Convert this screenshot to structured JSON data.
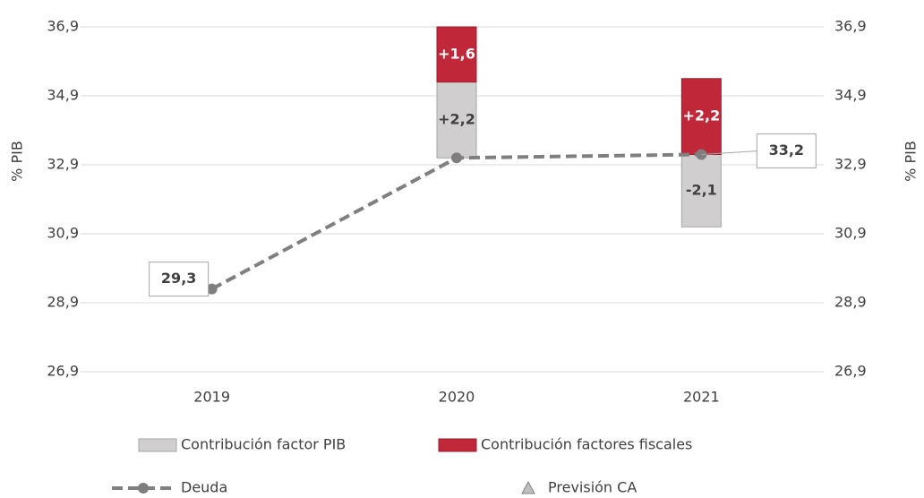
{
  "chart_data": {
    "type": "combo",
    "categories": [
      "2019",
      "2020",
      "2021"
    ],
    "ylabel": "% PIB",
    "y2label": "% PIB",
    "ylim": [
      26.9,
      36.9
    ],
    "yticks": [
      {
        "value": 26.9,
        "label": "26,9"
      },
      {
        "value": 28.9,
        "label": "28,9"
      },
      {
        "value": 30.9,
        "label": "30,9"
      },
      {
        "value": 32.9,
        "label": "32,9"
      },
      {
        "value": 34.9,
        "label": "34,9"
      },
      {
        "value": 36.9,
        "label": "36,9"
      }
    ],
    "y2lim": [
      26.9,
      36.9
    ],
    "y2ticks": [
      {
        "value": 26.9,
        "label": "26,9"
      },
      {
        "value": 28.9,
        "label": "28,9"
      },
      {
        "value": 30.9,
        "label": "30,9"
      },
      {
        "value": 32.9,
        "label": "32,9"
      },
      {
        "value": 34.9,
        "label": "34,9"
      },
      {
        "value": 36.9,
        "label": "36,9"
      }
    ],
    "grid": true,
    "series": [
      {
        "name": "Contribución factor PIB",
        "type": "bar",
        "color": "#d0cece",
        "values": [
          null,
          2.2,
          -2.1
        ],
        "value_labels": [
          null,
          "+2,2",
          "-2,1"
        ]
      },
      {
        "name": "Contribución factores fiscales",
        "type": "bar",
        "color": "#c0283a",
        "values": [
          null,
          1.6,
          2.2
        ],
        "value_labels": [
          null,
          "+1,6",
          "+2,2"
        ]
      },
      {
        "name": "Deuda",
        "type": "line",
        "color": "#7f7f7f",
        "values": [
          29.3,
          33.1,
          33.2
        ],
        "value_labels": [
          "29,3",
          null,
          "33,2"
        ]
      },
      {
        "name": "Previsión CA",
        "type": "scatter",
        "color": "#bfbfbf",
        "values": [
          null,
          null,
          null
        ]
      }
    ]
  }
}
